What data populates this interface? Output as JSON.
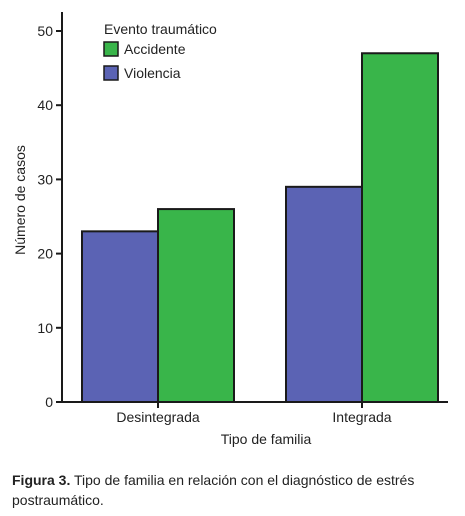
{
  "chart_data": {
    "type": "bar",
    "categories": [
      "Desintegrada",
      "Integrada"
    ],
    "series": [
      {
        "name": "Violencia",
        "values": [
          23,
          29
        ],
        "color": "#5b63b4"
      },
      {
        "name": "Accidente",
        "values": [
          26,
          47
        ],
        "color": "#39b54a"
      }
    ],
    "legend_title": "Evento traumático",
    "legend_order": [
      "Accidente",
      "Violencia"
    ],
    "legend_position": "top-left",
    "xlabel": "Tipo de familia",
    "ylabel": "Número de casos",
    "ylim": [
      0,
      50
    ],
    "yticks": [
      0,
      10,
      20,
      30,
      40,
      50
    ],
    "grid": false
  },
  "caption": {
    "label": "Figura 3.",
    "text": " Tipo de familia en relación con el diagnóstico de estrés postraumático."
  }
}
